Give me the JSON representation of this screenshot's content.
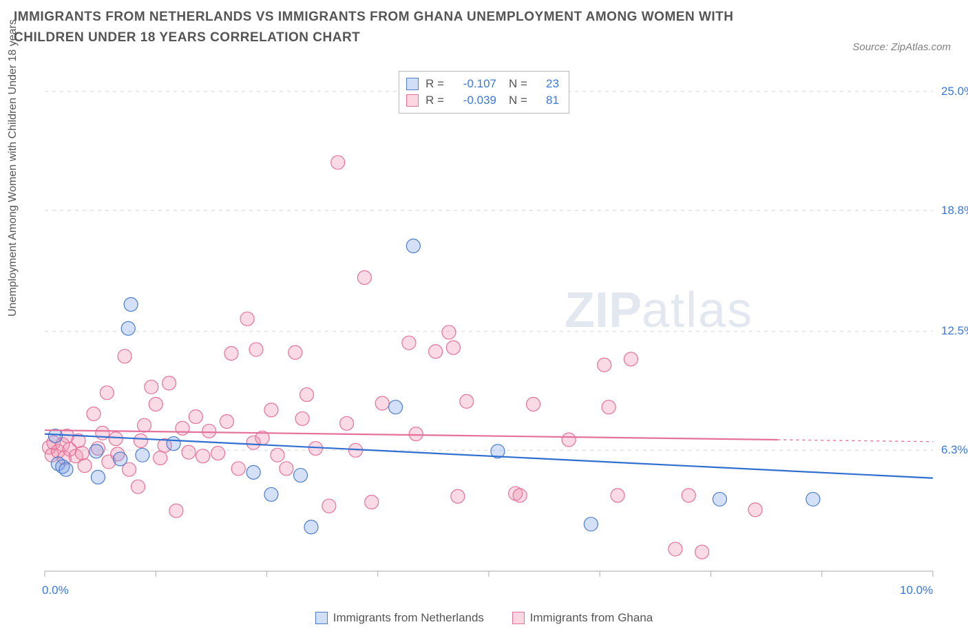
{
  "title": "IMMIGRANTS FROM NETHERLANDS VS IMMIGRANTS FROM GHANA UNEMPLOYMENT AMONG WOMEN WITH CHILDREN UNDER 18 YEARS CORRELATION CHART",
  "source_label": "Source:",
  "source_value": "ZipAtlas.com",
  "y_axis_label": "Unemployment Among Women with Children Under 18 years",
  "watermark_bold": "ZIP",
  "watermark_light": "atlas",
  "chart": {
    "type": "scatter",
    "xlim": [
      0.0,
      10.0
    ],
    "ylim": [
      0.0,
      26.0
    ],
    "x_ticks": [
      0.0,
      1.25,
      2.5,
      3.75,
      5.0,
      6.25,
      7.5,
      8.75,
      10.0
    ],
    "x_tick_labels": {
      "0": "0.0%",
      "10": "10.0%"
    },
    "y_grid": [
      6.3,
      12.5,
      18.8,
      25.0
    ],
    "y_tick_labels": [
      "6.3%",
      "12.5%",
      "18.8%",
      "25.0%"
    ],
    "background_color": "#ffffff",
    "grid_color": "#e2e2e2",
    "axis_color": "#b8b8b8",
    "marker_radius": 10,
    "marker_stroke_width": 1.2,
    "trend_line_width": 2.2,
    "series": [
      {
        "name": "Immigrants from Netherlands",
        "fill_color": "rgba(120,160,230,0.32)",
        "stroke_color": "#4a7cc9",
        "trend_color": "#2f6fd0",
        "trend_start": [
          0.0,
          7.15
        ],
        "trend_end": [
          10.0,
          4.85
        ],
        "R": "-0.107",
        "N": "23",
        "points": [
          [
            0.12,
            7.05
          ],
          [
            0.15,
            5.6
          ],
          [
            0.2,
            5.45
          ],
          [
            0.24,
            5.3
          ],
          [
            0.58,
            6.25
          ],
          [
            0.6,
            4.9
          ],
          [
            0.85,
            5.85
          ],
          [
            0.94,
            12.65
          ],
          [
            0.97,
            13.9
          ],
          [
            1.1,
            6.05
          ],
          [
            1.45,
            6.65
          ],
          [
            2.35,
            5.15
          ],
          [
            2.55,
            4.0
          ],
          [
            2.88,
            5.0
          ],
          [
            3.0,
            2.3
          ],
          [
            3.95,
            8.55
          ],
          [
            4.15,
            16.95
          ],
          [
            5.1,
            6.25
          ],
          [
            6.15,
            2.45
          ],
          [
            7.6,
            3.75
          ],
          [
            8.65,
            3.75
          ]
        ]
      },
      {
        "name": "Immigrants from Ghana",
        "fill_color": "rgba(240,140,170,0.32)",
        "stroke_color": "#e5709a",
        "trend_color": "#e5709a",
        "trend_start": [
          0.0,
          7.35
        ],
        "trend_end": [
          8.25,
          6.85
        ],
        "trend_dash_start": [
          8.25,
          6.85
        ],
        "trend_dash_end": [
          10.0,
          6.75
        ],
        "R": "-0.039",
        "N": "81",
        "points": [
          [
            0.05,
            6.45
          ],
          [
            0.08,
            6.05
          ],
          [
            0.1,
            6.7
          ],
          [
            0.15,
            6.25
          ],
          [
            0.2,
            6.6
          ],
          [
            0.22,
            5.9
          ],
          [
            0.25,
            7.05
          ],
          [
            0.28,
            6.35
          ],
          [
            0.35,
            6.0
          ],
          [
            0.38,
            6.8
          ],
          [
            0.42,
            6.15
          ],
          [
            0.45,
            5.5
          ],
          [
            0.55,
            8.2
          ],
          [
            0.6,
            6.4
          ],
          [
            0.65,
            7.2
          ],
          [
            0.7,
            9.3
          ],
          [
            0.72,
            5.7
          ],
          [
            0.8,
            6.9
          ],
          [
            0.82,
            6.1
          ],
          [
            0.9,
            11.2
          ],
          [
            0.95,
            5.3
          ],
          [
            1.05,
            4.4
          ],
          [
            1.08,
            6.8
          ],
          [
            1.12,
            7.6
          ],
          [
            1.2,
            9.6
          ],
          [
            1.25,
            8.7
          ],
          [
            1.3,
            5.9
          ],
          [
            1.35,
            6.55
          ],
          [
            1.4,
            9.8
          ],
          [
            1.48,
            3.15
          ],
          [
            1.55,
            7.45
          ],
          [
            1.62,
            6.2
          ],
          [
            1.7,
            8.05
          ],
          [
            1.78,
            6.0
          ],
          [
            1.85,
            7.3
          ],
          [
            1.95,
            6.15
          ],
          [
            2.05,
            7.8
          ],
          [
            2.1,
            11.35
          ],
          [
            2.18,
            5.35
          ],
          [
            2.28,
            13.15
          ],
          [
            2.35,
            6.7
          ],
          [
            2.38,
            11.55
          ],
          [
            2.45,
            6.95
          ],
          [
            2.55,
            8.4
          ],
          [
            2.62,
            6.05
          ],
          [
            2.72,
            5.35
          ],
          [
            2.82,
            11.4
          ],
          [
            2.9,
            7.95
          ],
          [
            2.95,
            9.2
          ],
          [
            3.05,
            6.4
          ],
          [
            3.2,
            3.4
          ],
          [
            3.3,
            21.3
          ],
          [
            3.4,
            7.7
          ],
          [
            3.5,
            6.3
          ],
          [
            3.6,
            15.3
          ],
          [
            3.68,
            3.6
          ],
          [
            3.8,
            8.75
          ],
          [
            4.1,
            11.9
          ],
          [
            4.18,
            7.15
          ],
          [
            4.4,
            11.45
          ],
          [
            4.55,
            12.45
          ],
          [
            4.6,
            11.65
          ],
          [
            4.65,
            3.9
          ],
          [
            4.75,
            8.85
          ],
          [
            5.3,
            4.05
          ],
          [
            5.35,
            3.95
          ],
          [
            5.5,
            8.7
          ],
          [
            5.9,
            6.85
          ],
          [
            6.3,
            10.75
          ],
          [
            6.35,
            8.55
          ],
          [
            6.45,
            3.95
          ],
          [
            6.6,
            11.05
          ],
          [
            7.1,
            1.15
          ],
          [
            7.25,
            3.95
          ],
          [
            7.4,
            1.0
          ],
          [
            8.0,
            3.2
          ]
        ]
      }
    ],
    "legend_bottom": {
      "items": [
        {
          "label": "Immigrants from Netherlands",
          "fill": "rgba(120,160,230,0.35)",
          "stroke": "#4a7cc9"
        },
        {
          "label": "Immigrants from Ghana",
          "fill": "rgba(240,140,170,0.35)",
          "stroke": "#e5709a"
        }
      ]
    },
    "legend_top": {
      "rows": [
        {
          "swatch_fill": "rgba(120,160,230,0.35)",
          "swatch_stroke": "#4a7cc9",
          "R_label": "R =",
          "R": "-0.107",
          "N_label": "N =",
          "N": "23"
        },
        {
          "swatch_fill": "rgba(240,140,170,0.35)",
          "swatch_stroke": "#e5709a",
          "R_label": "R =",
          "R": "-0.039",
          "N_label": "N =",
          "N": "81"
        }
      ]
    }
  }
}
